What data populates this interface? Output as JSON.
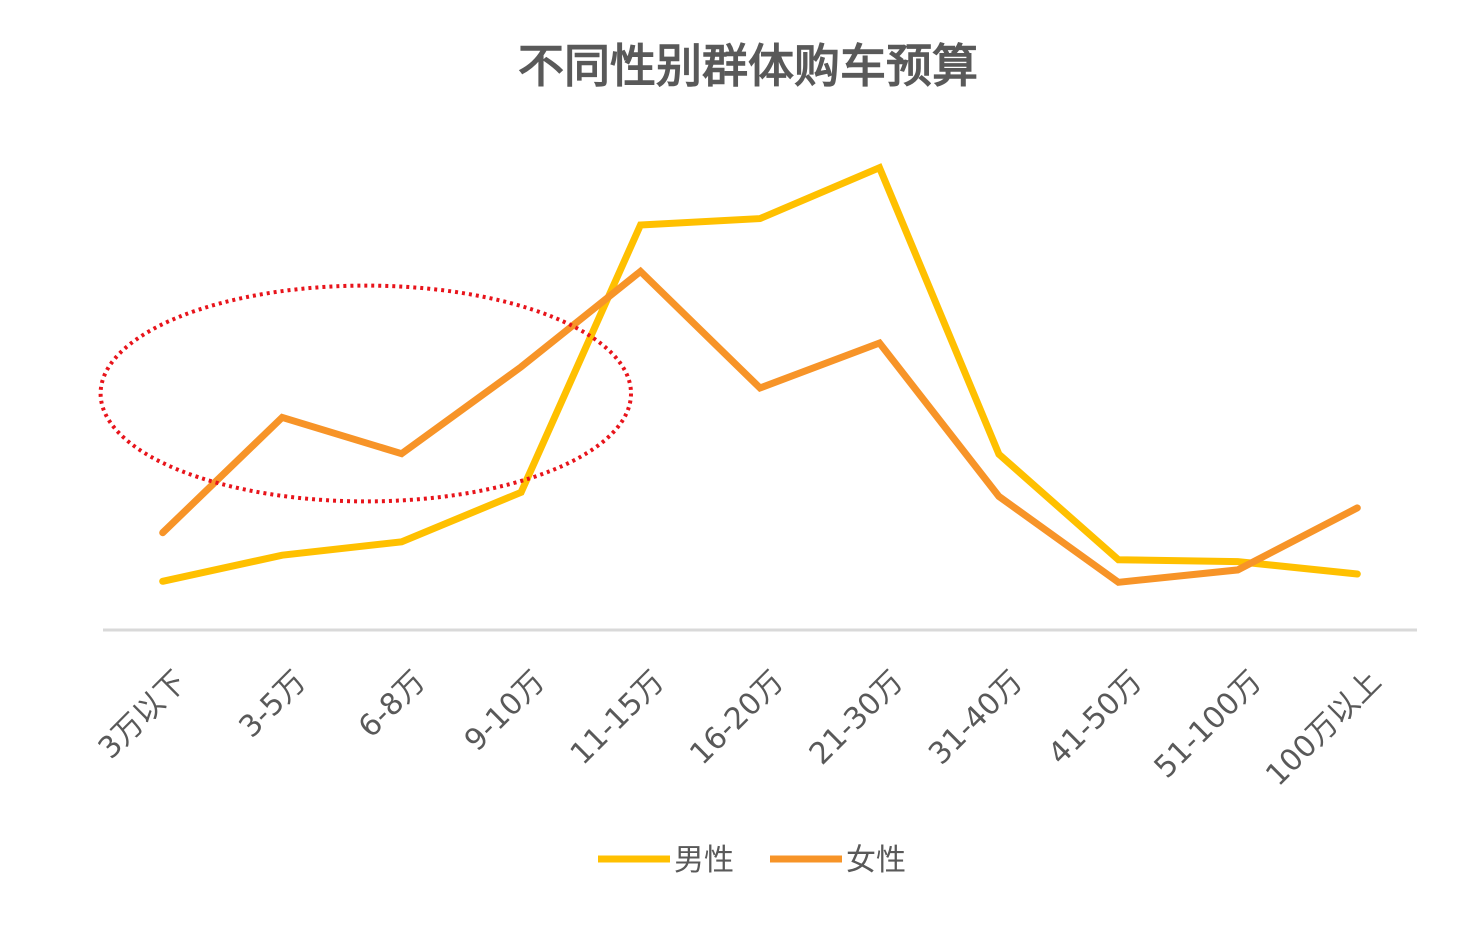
{
  "chart_data": {
    "type": "line",
    "title": "不同性别群体购车预算",
    "xlabel": "",
    "ylabel": "",
    "ylim": [
      0,
      100
    ],
    "grid": false,
    "legend_position": "bottom",
    "categories": [
      "3万以下",
      "3-5万",
      "6-8万",
      "9-10万",
      "11-15万",
      "16-20万",
      "21-30万",
      "31-40万",
      "41-50万",
      "51-100万",
      "100万以上"
    ],
    "series": [
      {
        "name": "男性",
        "color": "#FFC000",
        "values": [
          10.6,
          16.3,
          19.2,
          30.0,
          88.2,
          89.6,
          100.7,
          38.3,
          15.3,
          14.9,
          12.2
        ]
      },
      {
        "name": "女性",
        "color": "#F79428",
        "values": [
          21.2,
          46.3,
          38.4,
          57.3,
          78.1,
          52.7,
          62.5,
          29.1,
          10.4,
          13.1,
          26.6
        ]
      }
    ],
    "annotations": [
      {
        "type": "dotted-ellipse",
        "color": "#E8141B",
        "x_range": [
          "3万以下",
          "9-10万"
        ],
        "y_range": [
          28,
          75
        ]
      }
    ]
  }
}
